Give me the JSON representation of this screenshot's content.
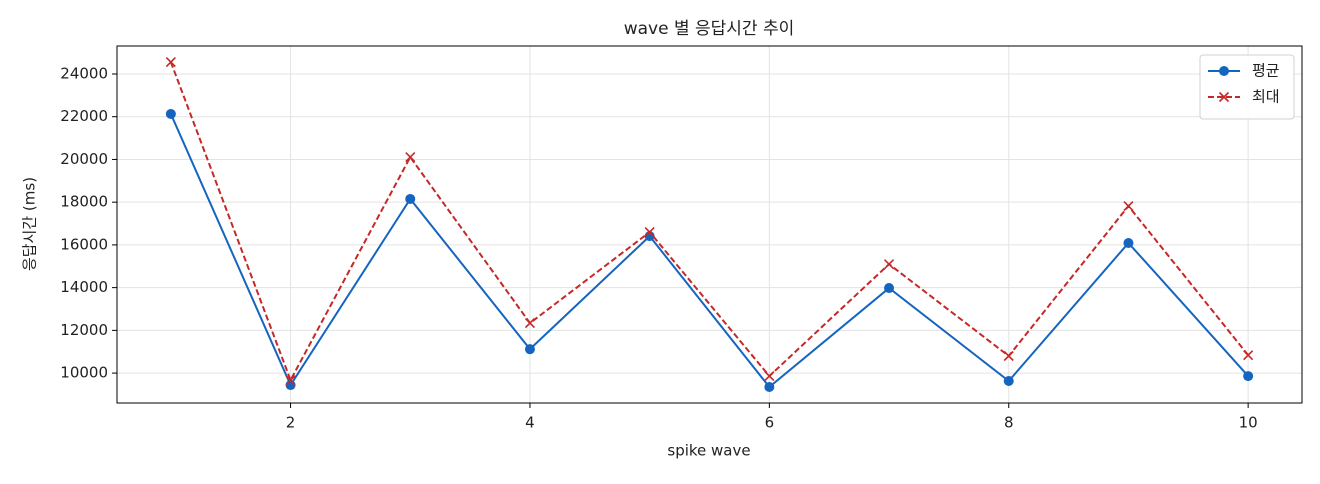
{
  "chart_data": {
    "type": "line",
    "title": "wave 별 응답시간 추이",
    "x_label": "spike wave",
    "y_label": "응답시간 (ms)",
    "x": [
      1,
      2,
      3,
      4,
      5,
      6,
      7,
      8,
      9,
      10
    ],
    "series": [
      {
        "name": "평균",
        "color": "#1565c0",
        "marker": "o",
        "dash": "solid",
        "values": [
          22130,
          9440,
          18150,
          11120,
          16410,
          9350,
          13980,
          9630,
          16090,
          9860
        ]
      },
      {
        "name": "최대",
        "color": "#c62828",
        "marker": "x",
        "dash": "dashed",
        "values": [
          24560,
          9670,
          20110,
          12340,
          16600,
          9860,
          15100,
          10800,
          17820,
          10840
        ]
      }
    ],
    "xlim": [
      0.55,
      10.45
    ],
    "xticks": [
      2,
      4,
      6,
      8,
      10
    ],
    "ylim": [
      8600,
      25310
    ],
    "yticks": [
      10000,
      12000,
      14000,
      16000,
      18000,
      20000,
      22000,
      24000
    ],
    "grid": true,
    "legend": "upper right"
  }
}
